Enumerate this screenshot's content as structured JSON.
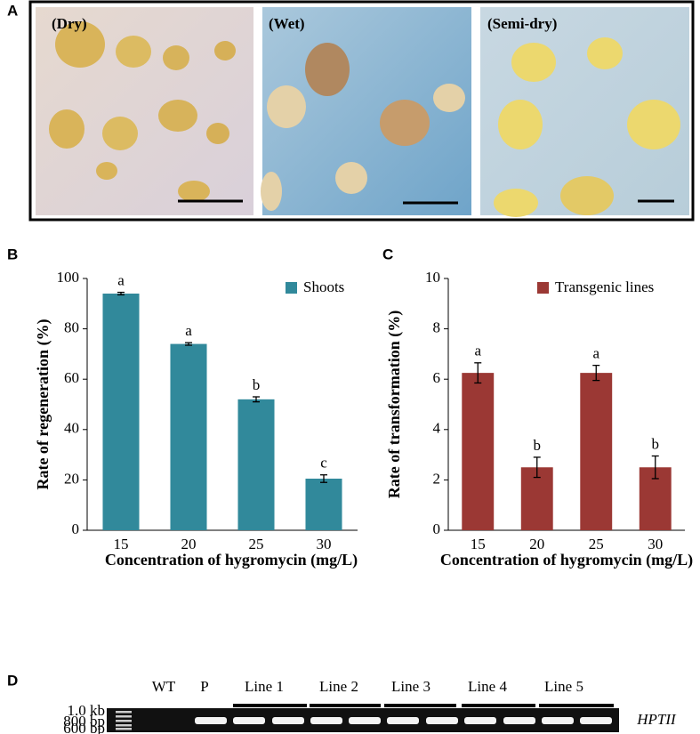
{
  "panels": {
    "A": "A",
    "B": "B",
    "C": "C",
    "D": "D"
  },
  "photos": [
    "(Dry)",
    "(Wet)",
    "(Semi-dry)"
  ],
  "chart_data": [
    {
      "type": "bar",
      "categories": [
        "15",
        "20",
        "25",
        "30"
      ],
      "values": [
        94,
        74,
        52,
        20.5
      ],
      "errors": [
        0.5,
        0.5,
        1,
        1.5
      ],
      "annotations": [
        "a",
        "a",
        "b",
        "c"
      ],
      "series_name": "Shoots",
      "color": "#31899b",
      "ylim": [
        0,
        100
      ],
      "yticks": [
        0,
        20,
        40,
        60,
        80,
        100
      ],
      "y_label": "Rate of regeneration (%)",
      "x_label": "Concentration of hygromycin (mg/L)",
      "legend": "upper right"
    },
    {
      "type": "bar",
      "categories": [
        "15",
        "20",
        "25",
        "30"
      ],
      "values": [
        6.25,
        2.5,
        6.25,
        2.5
      ],
      "errors": [
        0.4,
        0.4,
        0.3,
        0.45
      ],
      "annotations": [
        "a",
        "b",
        "a",
        "b"
      ],
      "series_name": "Transgenic lines",
      "color": "#9b3834",
      "ylim": [
        0,
        10
      ],
      "yticks": [
        0,
        2,
        4,
        6,
        8,
        10
      ],
      "y_label": "Rate of transformation (%)",
      "x_label": "Concentration of hygromycin (mg/L)",
      "legend": "upper right"
    }
  ],
  "gel": {
    "lanes": [
      "WT",
      "P",
      "Line 1",
      "Line 2",
      "Line 3",
      "Line 4",
      "Line 5"
    ],
    "ladder": [
      "1.0 kb",
      "800 bp",
      "600 bp"
    ],
    "gene": "HPTII"
  }
}
